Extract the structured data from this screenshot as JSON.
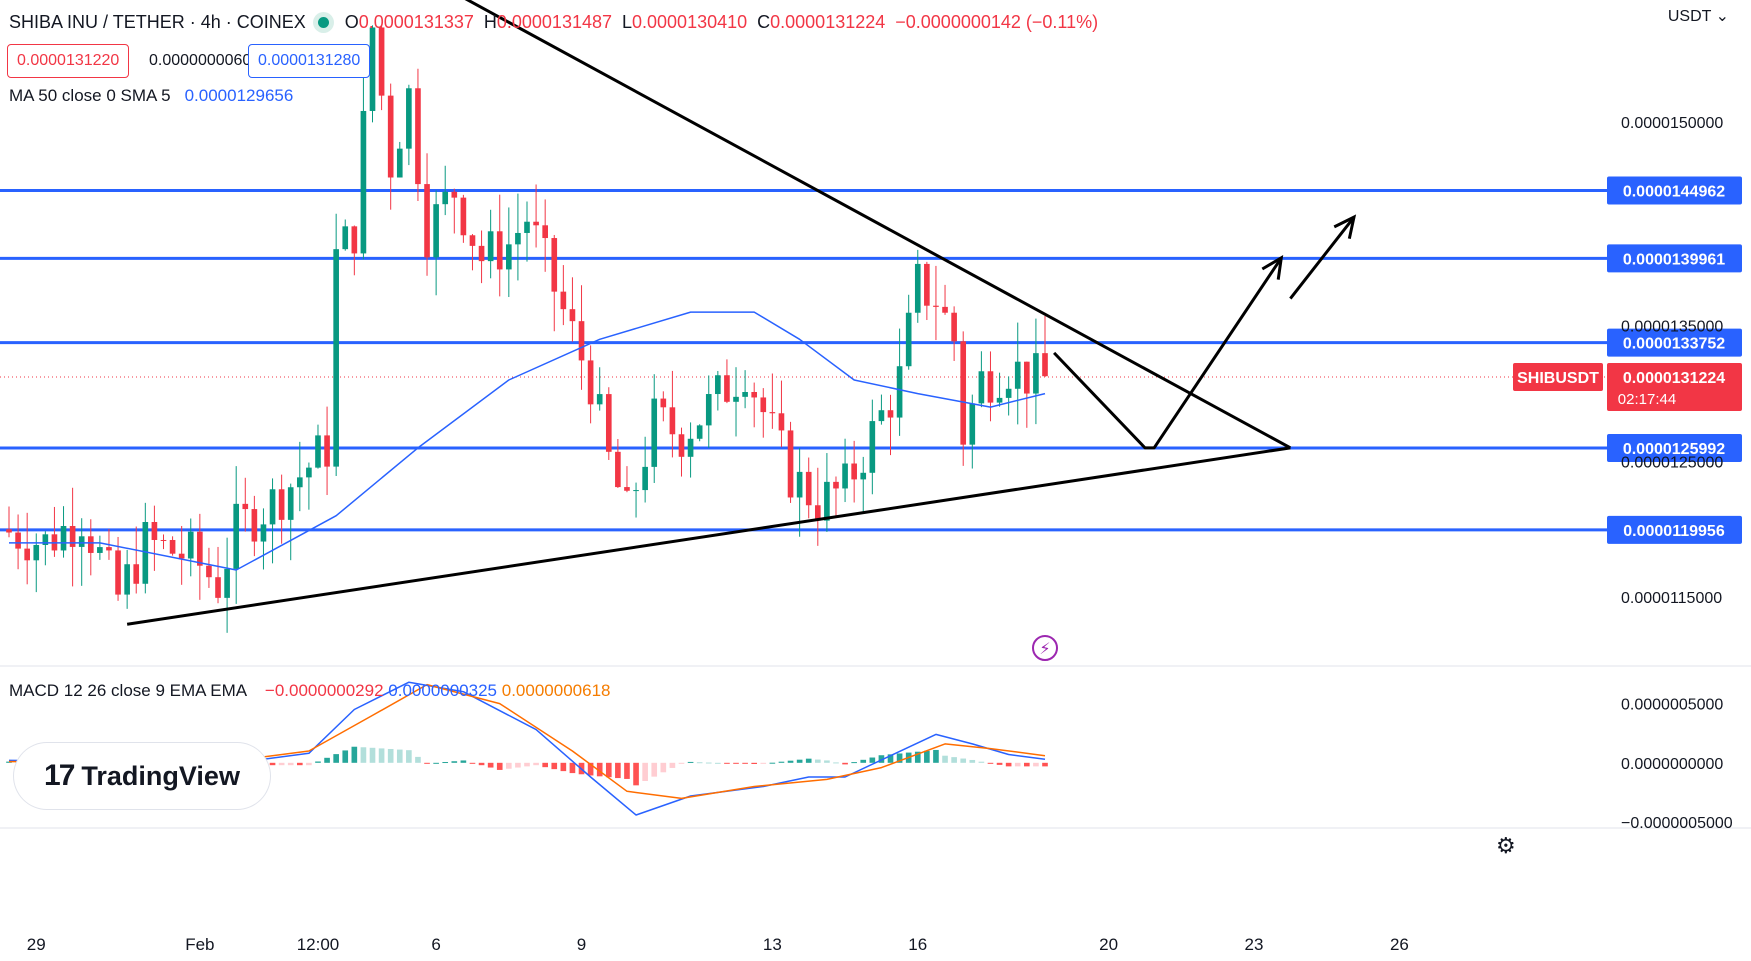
{
  "header": {
    "symbol": "SHIBA INU / TETHER · 4h · COINEX",
    "ohlc": {
      "o_label": "O",
      "o": "0.0000131337",
      "h_label": "H",
      "h": "0.0000131487",
      "l_label": "L",
      "l": "0.0000130410",
      "c_label": "C",
      "c": "0.0000131224",
      "change": "−0.0000000142 (−0.11%)"
    },
    "bid": "0.0000131220",
    "spread": "0.0000000060",
    "ask": "0.0000131280",
    "currency": "USDT"
  },
  "indicators": {
    "ma_label": "MA 50 close 0 SMA 5",
    "ma_value": "0.0000129656",
    "macd_label": "MACD 12 26 close 9 EMA EMA",
    "macd_hist": "−0.0000000292",
    "macd_line": "0.0000000325",
    "macd_signal": "0.0000000618"
  },
  "logo_text": "TradingView",
  "chart_data": {
    "type": "candlestick",
    "symbol_tag": "SHIBUSDT",
    "last_price": "0.0000131224",
    "countdown": "02:17:44",
    "price_axis": {
      "ylim": [
        1.1e-05,
        1.59e-05
      ],
      "ticks": [
        {
          "v": 1.5e-05,
          "label": "0.0000150000"
        },
        {
          "v": 1.35e-05,
          "label": "0.0000135000"
        },
        {
          "v": 1.25e-05,
          "label": "0.0000125000"
        },
        {
          "v": 1.15e-05,
          "label": "0.0000115000"
        }
      ]
    },
    "macd_axis": {
      "ylim": [
        -5.5e-07,
        8e-07
      ],
      "ticks": [
        {
          "v": 5e-07,
          "label": "0.0000005000"
        },
        {
          "v": 0.0,
          "label": "0.0000000000"
        },
        {
          "v": -5e-07,
          "label": "−0.0000005000"
        }
      ]
    },
    "x_axis": {
      "bars": 170,
      "ticks": [
        {
          "bar": 3,
          "label": "29"
        },
        {
          "bar": 21,
          "label": "Feb"
        },
        {
          "bar": 34,
          "label": "12:00"
        },
        {
          "bar": 47,
          "label": "6"
        },
        {
          "bar": 63,
          "label": "9"
        },
        {
          "bar": 84,
          "label": "13"
        },
        {
          "bar": 100,
          "label": "16"
        },
        {
          "bar": 121,
          "label": "20"
        },
        {
          "bar": 137,
          "label": "23"
        },
        {
          "bar": 153,
          "label": "26"
        }
      ]
    },
    "horizontal_levels": [
      {
        "v": 1.44962e-05,
        "label": "0.0000144962"
      },
      {
        "v": 1.39961e-05,
        "label": "0.0000139961"
      },
      {
        "v": 1.33752e-05,
        "label": "0.0000133752"
      },
      {
        "v": 1.25992e-05,
        "label": "0.0000125992"
      },
      {
        "v": 1.19956e-05,
        "label": "0.0000119956"
      }
    ],
    "trendlines": [
      {
        "from": {
          "bar": 45,
          "v": 1.61e-05
        },
        "to": {
          "bar": 141,
          "v": 1.26e-05
        }
      },
      {
        "from": {
          "bar": 13,
          "v": 1.13e-05
        },
        "to": {
          "bar": 141,
          "v": 1.26e-05
        }
      }
    ],
    "projection_path": [
      {
        "bar": 115,
        "v": 1.33e-05
      },
      {
        "bar": 125,
        "v": 1.26e-05
      },
      {
        "bar": 126,
        "v": 1.26e-05
      },
      {
        "bar": 140,
        "v": 1.4e-05
      }
    ],
    "projection_arrow": {
      "from": {
        "bar": 141,
        "v": 1.37e-05
      },
      "to": {
        "bar": 148,
        "v": 1.43e-05
      }
    },
    "anchors": [
      {
        "bar": 0,
        "v": 1.2e-05
      },
      {
        "bar": 5,
        "v": 1.19e-05
      },
      {
        "bar": 9,
        "v": 1.21e-05
      },
      {
        "bar": 13,
        "v": 1.15e-05
      },
      {
        "bar": 16,
        "v": 1.19e-05
      },
      {
        "bar": 21,
        "v": 1.18e-05
      },
      {
        "bar": 24,
        "v": 1.16e-05
      },
      {
        "bar": 26,
        "v": 1.2e-05
      },
      {
        "bar": 30,
        "v": 1.22e-05
      },
      {
        "bar": 33,
        "v": 1.24e-05
      },
      {
        "bar": 36,
        "v": 1.26e-05
      },
      {
        "bar": 37,
        "v": 1.4e-05
      },
      {
        "bar": 39,
        "v": 1.42e-05
      },
      {
        "bar": 41,
        "v": 1.57e-05
      },
      {
        "bar": 43,
        "v": 1.47e-05
      },
      {
        "bar": 45,
        "v": 1.52e-05
      },
      {
        "bar": 47,
        "v": 1.42e-05
      },
      {
        "bar": 50,
        "v": 1.45e-05
      },
      {
        "bar": 53,
        "v": 1.4e-05
      },
      {
        "bar": 56,
        "v": 1.41e-05
      },
      {
        "bar": 58,
        "v": 1.43e-05
      },
      {
        "bar": 62,
        "v": 1.36e-05
      },
      {
        "bar": 65,
        "v": 1.31e-05
      },
      {
        "bar": 67,
        "v": 1.25e-05
      },
      {
        "bar": 69,
        "v": 1.21e-05
      },
      {
        "bar": 72,
        "v": 1.28e-05
      },
      {
        "bar": 75,
        "v": 1.27e-05
      },
      {
        "bar": 78,
        "v": 1.29e-05
      },
      {
        "bar": 82,
        "v": 1.32e-05
      },
      {
        "bar": 85,
        "v": 1.27e-05
      },
      {
        "bar": 87,
        "v": 1.24e-05
      },
      {
        "bar": 90,
        "v": 1.22e-05
      },
      {
        "bar": 93,
        "v": 1.23e-05
      },
      {
        "bar": 96,
        "v": 1.27e-05
      },
      {
        "bar": 99,
        "v": 1.31e-05
      },
      {
        "bar": 101,
        "v": 1.38e-05
      },
      {
        "bar": 103,
        "v": 1.37e-05
      },
      {
        "bar": 105,
        "v": 1.34e-05
      },
      {
        "bar": 106,
        "v": 1.27e-05
      },
      {
        "bar": 108,
        "v": 1.31e-05
      },
      {
        "bar": 111,
        "v": 1.32e-05
      },
      {
        "bar": 114,
        "v": 1.31e-05
      }
    ],
    "ma_line": [
      {
        "bar": 0,
        "v": 1.19e-05
      },
      {
        "bar": 10,
        "v": 1.19e-05
      },
      {
        "bar": 25,
        "v": 1.17e-05
      },
      {
        "bar": 36,
        "v": 1.21e-05
      },
      {
        "bar": 45,
        "v": 1.26e-05
      },
      {
        "bar": 55,
        "v": 1.31e-05
      },
      {
        "bar": 65,
        "v": 1.34e-05
      },
      {
        "bar": 75,
        "v": 1.36e-05
      },
      {
        "bar": 82,
        "v": 1.36e-05
      },
      {
        "bar": 87,
        "v": 1.34e-05
      },
      {
        "bar": 93,
        "v": 1.31e-05
      },
      {
        "bar": 100,
        "v": 1.3e-05
      },
      {
        "bar": 108,
        "v": 1.29e-05
      },
      {
        "bar": 114,
        "v": 1.3e-05
      }
    ],
    "macd_line": [
      {
        "bar": 0,
        "v": 2e-08
      },
      {
        "bar": 25,
        "v": 0.0
      },
      {
        "bar": 33,
        "v": 8e-08
      },
      {
        "bar": 38,
        "v": 4.5e-07
      },
      {
        "bar": 44,
        "v": 6.8e-07
      },
      {
        "bar": 50,
        "v": 6e-07
      },
      {
        "bar": 58,
        "v": 2.8e-07
      },
      {
        "bar": 64,
        "v": -1.2e-07
      },
      {
        "bar": 69,
        "v": -4.4e-07
      },
      {
        "bar": 75,
        "v": -2.8e-07
      },
      {
        "bar": 83,
        "v": -2e-07
      },
      {
        "bar": 88,
        "v": -1.2e-07
      },
      {
        "bar": 92,
        "v": -1.2e-07
      },
      {
        "bar": 97,
        "v": 6e-08
      },
      {
        "bar": 102,
        "v": 2.4e-07
      },
      {
        "bar": 106,
        "v": 1.6e-07
      },
      {
        "bar": 110,
        "v": 7e-08
      },
      {
        "bar": 114,
        "v": 3e-08
      }
    ],
    "signal_line": [
      {
        "bar": 0,
        "v": 1e-08
      },
      {
        "bar": 25,
        "v": 2e-08
      },
      {
        "bar": 33,
        "v": 1e-07
      },
      {
        "bar": 40,
        "v": 4e-07
      },
      {
        "bar": 46,
        "v": 6.6e-07
      },
      {
        "bar": 54,
        "v": 5e-07
      },
      {
        "bar": 62,
        "v": 1e-07
      },
      {
        "bar": 68,
        "v": -2.4e-07
      },
      {
        "bar": 74,
        "v": -3e-07
      },
      {
        "bar": 82,
        "v": -2e-07
      },
      {
        "bar": 90,
        "v": -1.4e-07
      },
      {
        "bar": 96,
        "v": -4e-08
      },
      {
        "bar": 103,
        "v": 1.6e-07
      },
      {
        "bar": 108,
        "v": 1.2e-07
      },
      {
        "bar": 114,
        "v": 6e-08
      }
    ]
  }
}
